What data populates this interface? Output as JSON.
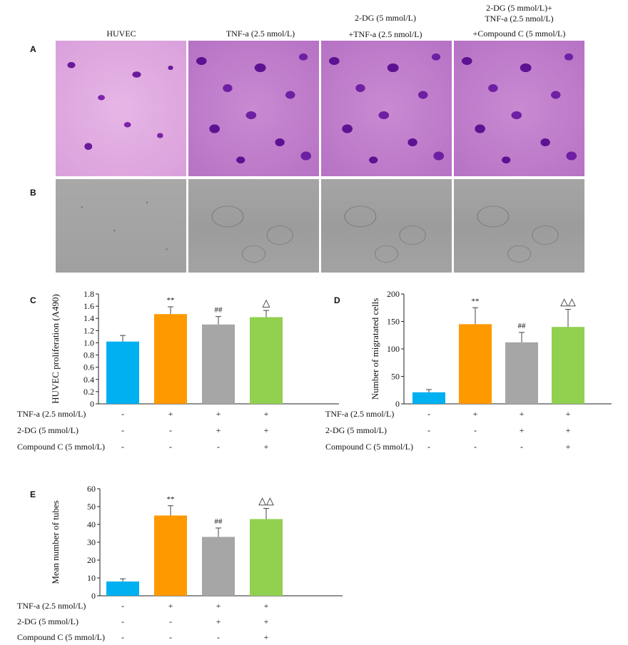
{
  "figure": {
    "panel_labels": [
      "A",
      "B",
      "C",
      "D",
      "E"
    ],
    "column_headers": [
      [
        "HUVEC"
      ],
      [
        "TNF-a (2.5 nmol/L)"
      ],
      [
        "2-DG (5 mmol/L)",
        "+TNF-a (2.5 nmol/L)"
      ],
      [
        "2-DG (5 mmol/L)+",
        "TNF-a (2.5 nmol/L)",
        "+Compound C  (5 mmol/L)"
      ]
    ],
    "conditions": {
      "labels": [
        "TNF-a (2.5 nmol/L)",
        "2-DG (5 mmol/L)",
        "Compound C (5 mmol/L)"
      ],
      "marks": [
        [
          "-",
          "+",
          "+",
          "+"
        ],
        [
          "-",
          "-",
          "+",
          "+"
        ],
        [
          "-",
          "-",
          "-",
          "+"
        ]
      ]
    },
    "colors": [
      "#00b0f0",
      "#ff9900",
      "#a6a6a6",
      "#92d050"
    ]
  },
  "chart_data": [
    {
      "panel": "C",
      "type": "bar",
      "categories": [
        "1",
        "2",
        "3",
        "4"
      ],
      "values": [
        1.02,
        1.47,
        1.3,
        1.42
      ],
      "errors": [
        0.1,
        0.12,
        0.13,
        0.11
      ],
      "annotations": [
        "",
        "**",
        "##",
        "△"
      ],
      "ylabel": "HUVEC proliferation (A490)",
      "yticks": [
        "0",
        "0.2",
        "0.4",
        "0.6",
        "0.8",
        "1.0",
        "1.2",
        "1.4",
        "1.6",
        "1.8"
      ],
      "ylim": [
        0,
        1.8
      ]
    },
    {
      "panel": "D",
      "type": "bar",
      "categories": [
        "1",
        "2",
        "3",
        "4"
      ],
      "values": [
        21,
        145,
        112,
        140
      ],
      "errors": [
        5,
        30,
        18,
        32
      ],
      "annotations": [
        "",
        "**",
        "##",
        "△△"
      ],
      "ylabel": "Number of migratated cells",
      "yticks": [
        "0",
        "50",
        "100",
        "150",
        "200"
      ],
      "ylim": [
        0,
        200
      ]
    },
    {
      "panel": "E",
      "type": "bar",
      "categories": [
        "1",
        "2",
        "3",
        "4"
      ],
      "values": [
        8,
        45,
        33,
        43
      ],
      "errors": [
        1.5,
        5.5,
        5,
        6
      ],
      "annotations": [
        "",
        "**",
        "##",
        "△△"
      ],
      "ylabel": "Mean number of tubes",
      "yticks": [
        "0",
        "10",
        "20",
        "30",
        "40",
        "50",
        "60"
      ],
      "ylim": [
        0,
        60
      ]
    }
  ]
}
